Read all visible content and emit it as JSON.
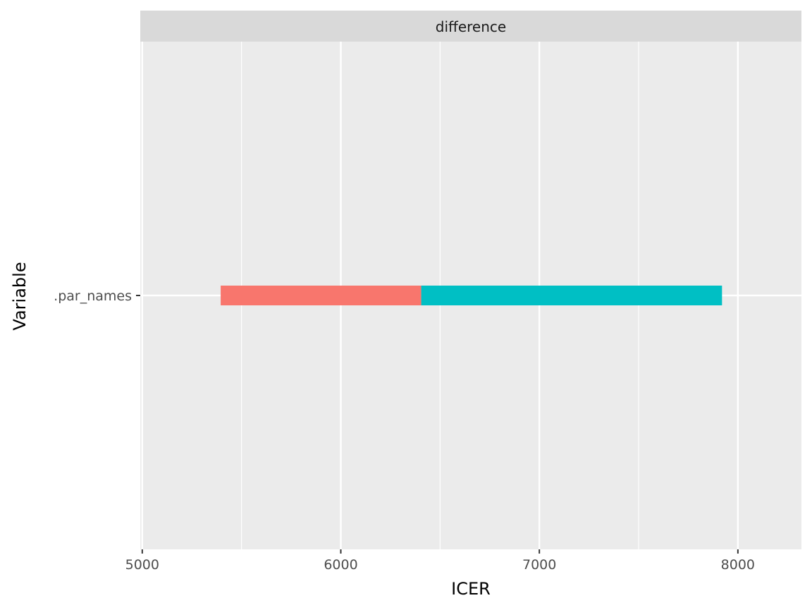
{
  "chart_data": {
    "type": "bar",
    "orientation": "horizontal",
    "facet_label": "difference",
    "xlabel": "ICER",
    "ylabel": "Variable",
    "xlim": [
      4990,
      8320
    ],
    "x_ticks": [
      5000,
      6000,
      7000,
      8000
    ],
    "x_minor_ticks": [
      5500,
      6500,
      7500
    ],
    "categories": [
      ".par_names"
    ],
    "baseline": 6405,
    "bars": [
      {
        "category": ".par_names",
        "start": 5395,
        "end": 6405,
        "color": "#F8766D"
      },
      {
        "category": ".par_names",
        "start": 6405,
        "end": 7920,
        "color": "#00BFC4"
      }
    ],
    "grid": true,
    "legend": "none"
  },
  "colors": {
    "panel_background": "#EBEBEB",
    "strip_background": "#D9D9D9",
    "grid_line": "#FFFFFF"
  }
}
